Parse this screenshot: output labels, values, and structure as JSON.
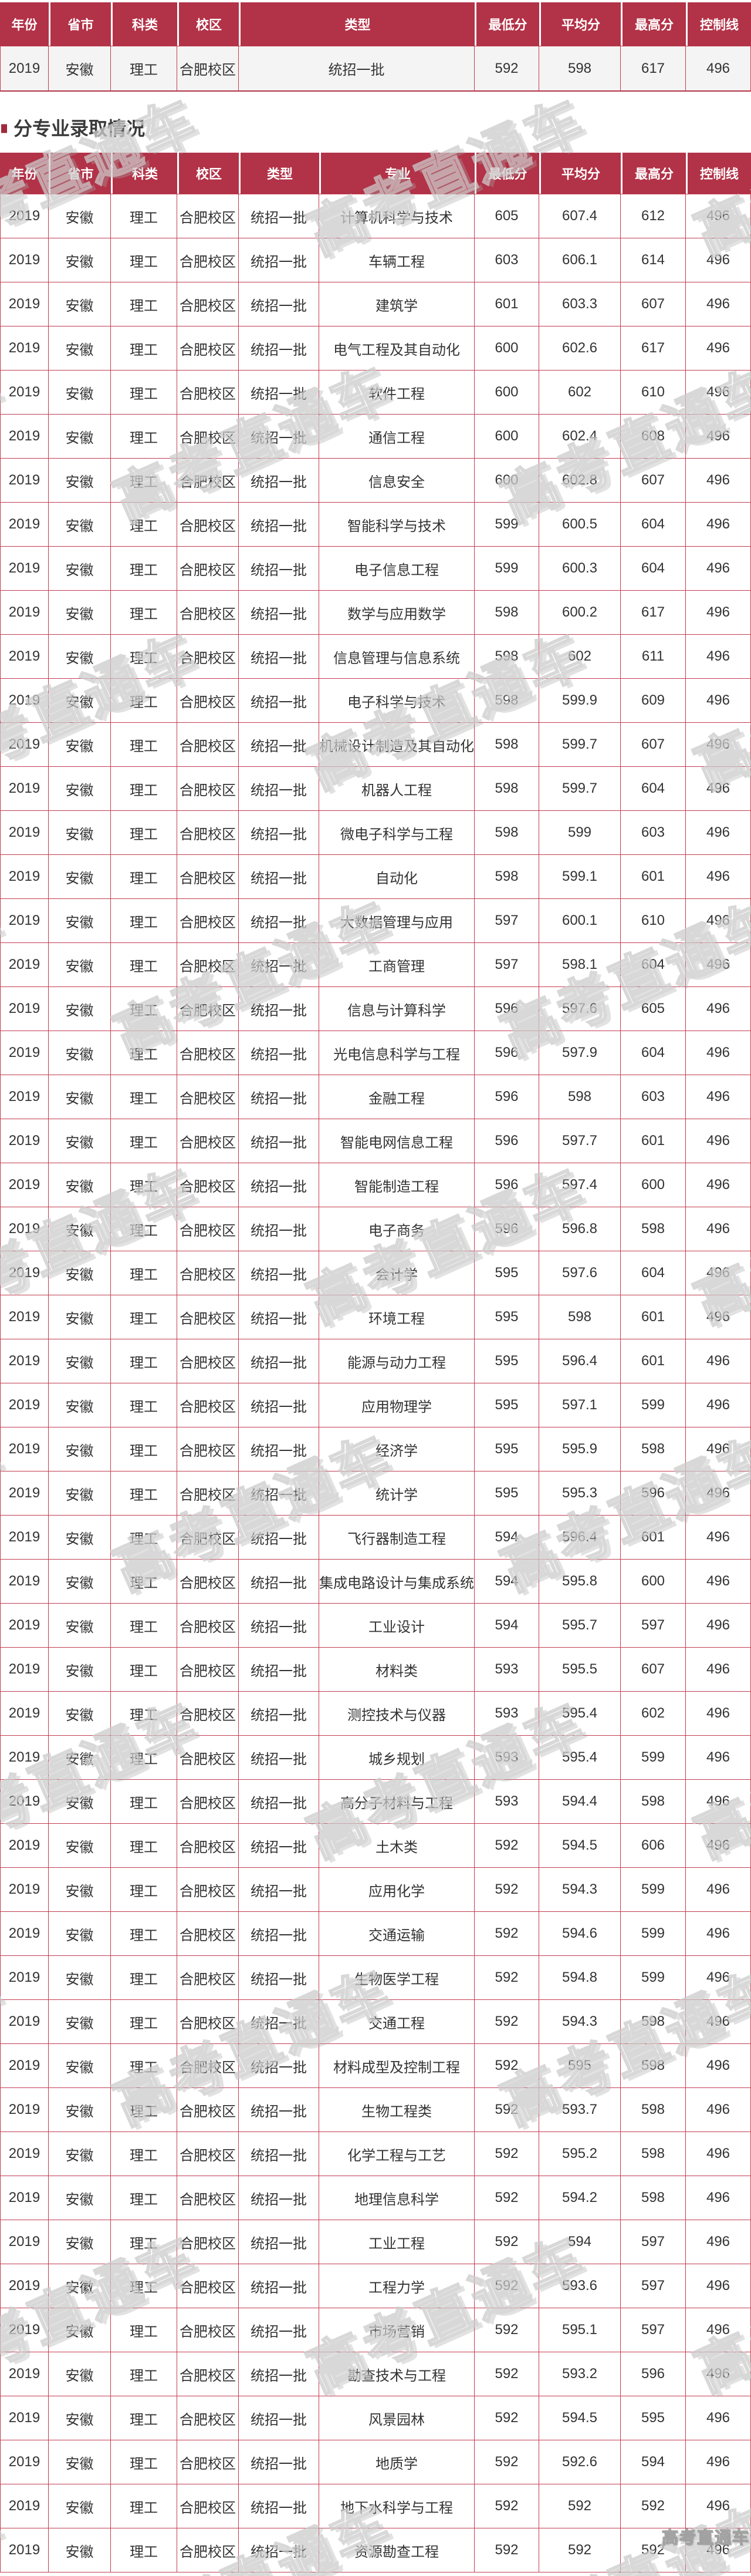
{
  "colors": {
    "header_bg": "#b23247",
    "grid_border": "#c23b50",
    "summary_row_bg": "#f4f4f4",
    "header_text": "#ffffff",
    "body_text": "#333333",
    "title_text": "#3a3a3a",
    "bullet": "#a02a3c",
    "watermark": "#cccccc"
  },
  "watermark": {
    "text": "高考直通车"
  },
  "section": {
    "title": "分专业录取情况"
  },
  "summary_table": {
    "headers": [
      "年份",
      "省市",
      "科类",
      "校区",
      "类型",
      "最低分",
      "平均分",
      "最高分",
      "控制线"
    ],
    "rows": [
      [
        "2019",
        "安徽",
        "理工",
        "合肥校区",
        "统招一批",
        "592",
        "598",
        "617",
        "496"
      ]
    ]
  },
  "majors_table": {
    "headers": [
      "年份",
      "省市",
      "科类",
      "校区",
      "类型",
      "专业",
      "最低分",
      "平均分",
      "最高分",
      "控制线"
    ],
    "rows": [
      [
        "2019",
        "安徽",
        "理工",
        "合肥校区",
        "统招一批",
        "计算机科学与技术",
        "605",
        "607.4",
        "612",
        "496"
      ],
      [
        "2019",
        "安徽",
        "理工",
        "合肥校区",
        "统招一批",
        "车辆工程",
        "603",
        "606.1",
        "614",
        "496"
      ],
      [
        "2019",
        "安徽",
        "理工",
        "合肥校区",
        "统招一批",
        "建筑学",
        "601",
        "603.3",
        "607",
        "496"
      ],
      [
        "2019",
        "安徽",
        "理工",
        "合肥校区",
        "统招一批",
        "电气工程及其自动化",
        "600",
        "602.6",
        "617",
        "496"
      ],
      [
        "2019",
        "安徽",
        "理工",
        "合肥校区",
        "统招一批",
        "软件工程",
        "600",
        "602",
        "610",
        "496"
      ],
      [
        "2019",
        "安徽",
        "理工",
        "合肥校区",
        "统招一批",
        "通信工程",
        "600",
        "602.4",
        "608",
        "496"
      ],
      [
        "2019",
        "安徽",
        "理工",
        "合肥校区",
        "统招一批",
        "信息安全",
        "600",
        "602.8",
        "607",
        "496"
      ],
      [
        "2019",
        "安徽",
        "理工",
        "合肥校区",
        "统招一批",
        "智能科学与技术",
        "599",
        "600.5",
        "604",
        "496"
      ],
      [
        "2019",
        "安徽",
        "理工",
        "合肥校区",
        "统招一批",
        "电子信息工程",
        "599",
        "600.3",
        "604",
        "496"
      ],
      [
        "2019",
        "安徽",
        "理工",
        "合肥校区",
        "统招一批",
        "数学与应用数学",
        "598",
        "600.2",
        "617",
        "496"
      ],
      [
        "2019",
        "安徽",
        "理工",
        "合肥校区",
        "统招一批",
        "信息管理与信息系统",
        "598",
        "602",
        "611",
        "496"
      ],
      [
        "2019",
        "安徽",
        "理工",
        "合肥校区",
        "统招一批",
        "电子科学与技术",
        "598",
        "599.9",
        "609",
        "496"
      ],
      [
        "2019",
        "安徽",
        "理工",
        "合肥校区",
        "统招一批",
        "机械设计制造及其自动化",
        "598",
        "599.7",
        "607",
        "496"
      ],
      [
        "2019",
        "安徽",
        "理工",
        "合肥校区",
        "统招一批",
        "机器人工程",
        "598",
        "599.7",
        "604",
        "496"
      ],
      [
        "2019",
        "安徽",
        "理工",
        "合肥校区",
        "统招一批",
        "微电子科学与工程",
        "598",
        "599",
        "603",
        "496"
      ],
      [
        "2019",
        "安徽",
        "理工",
        "合肥校区",
        "统招一批",
        "自动化",
        "598",
        "599.1",
        "601",
        "496"
      ],
      [
        "2019",
        "安徽",
        "理工",
        "合肥校区",
        "统招一批",
        "大数据管理与应用",
        "597",
        "600.1",
        "610",
        "496"
      ],
      [
        "2019",
        "安徽",
        "理工",
        "合肥校区",
        "统招一批",
        "工商管理",
        "597",
        "598.1",
        "604",
        "496"
      ],
      [
        "2019",
        "安徽",
        "理工",
        "合肥校区",
        "统招一批",
        "信息与计算科学",
        "596",
        "597.6",
        "605",
        "496"
      ],
      [
        "2019",
        "安徽",
        "理工",
        "合肥校区",
        "统招一批",
        "光电信息科学与工程",
        "596",
        "597.9",
        "604",
        "496"
      ],
      [
        "2019",
        "安徽",
        "理工",
        "合肥校区",
        "统招一批",
        "金融工程",
        "596",
        "598",
        "603",
        "496"
      ],
      [
        "2019",
        "安徽",
        "理工",
        "合肥校区",
        "统招一批",
        "智能电网信息工程",
        "596",
        "597.7",
        "601",
        "496"
      ],
      [
        "2019",
        "安徽",
        "理工",
        "合肥校区",
        "统招一批",
        "智能制造工程",
        "596",
        "597.4",
        "600",
        "496"
      ],
      [
        "2019",
        "安徽",
        "理工",
        "合肥校区",
        "统招一批",
        "电子商务",
        "596",
        "596.8",
        "598",
        "496"
      ],
      [
        "2019",
        "安徽",
        "理工",
        "合肥校区",
        "统招一批",
        "会计学",
        "595",
        "597.6",
        "604",
        "496"
      ],
      [
        "2019",
        "安徽",
        "理工",
        "合肥校区",
        "统招一批",
        "环境工程",
        "595",
        "598",
        "601",
        "496"
      ],
      [
        "2019",
        "安徽",
        "理工",
        "合肥校区",
        "统招一批",
        "能源与动力工程",
        "595",
        "596.4",
        "601",
        "496"
      ],
      [
        "2019",
        "安徽",
        "理工",
        "合肥校区",
        "统招一批",
        "应用物理学",
        "595",
        "597.1",
        "599",
        "496"
      ],
      [
        "2019",
        "安徽",
        "理工",
        "合肥校区",
        "统招一批",
        "经济学",
        "595",
        "595.9",
        "598",
        "496"
      ],
      [
        "2019",
        "安徽",
        "理工",
        "合肥校区",
        "统招一批",
        "统计学",
        "595",
        "595.3",
        "596",
        "496"
      ],
      [
        "2019",
        "安徽",
        "理工",
        "合肥校区",
        "统招一批",
        "飞行器制造工程",
        "594",
        "596.4",
        "601",
        "496"
      ],
      [
        "2019",
        "安徽",
        "理工",
        "合肥校区",
        "统招一批",
        "集成电路设计与集成系统",
        "594",
        "595.8",
        "600",
        "496"
      ],
      [
        "2019",
        "安徽",
        "理工",
        "合肥校区",
        "统招一批",
        "工业设计",
        "594",
        "595.7",
        "597",
        "496"
      ],
      [
        "2019",
        "安徽",
        "理工",
        "合肥校区",
        "统招一批",
        "材料类",
        "593",
        "595.5",
        "607",
        "496"
      ],
      [
        "2019",
        "安徽",
        "理工",
        "合肥校区",
        "统招一批",
        "测控技术与仪器",
        "593",
        "595.4",
        "602",
        "496"
      ],
      [
        "2019",
        "安徽",
        "理工",
        "合肥校区",
        "统招一批",
        "城乡规划",
        "593",
        "595.4",
        "599",
        "496"
      ],
      [
        "2019",
        "安徽",
        "理工",
        "合肥校区",
        "统招一批",
        "高分子材料与工程",
        "593",
        "594.4",
        "598",
        "496"
      ],
      [
        "2019",
        "安徽",
        "理工",
        "合肥校区",
        "统招一批",
        "土木类",
        "592",
        "594.5",
        "606",
        "496"
      ],
      [
        "2019",
        "安徽",
        "理工",
        "合肥校区",
        "统招一批",
        "应用化学",
        "592",
        "594.3",
        "599",
        "496"
      ],
      [
        "2019",
        "安徽",
        "理工",
        "合肥校区",
        "统招一批",
        "交通运输",
        "592",
        "594.6",
        "599",
        "496"
      ],
      [
        "2019",
        "安徽",
        "理工",
        "合肥校区",
        "统招一批",
        "生物医学工程",
        "592",
        "594.8",
        "599",
        "496"
      ],
      [
        "2019",
        "安徽",
        "理工",
        "合肥校区",
        "统招一批",
        "交通工程",
        "592",
        "594.3",
        "598",
        "496"
      ],
      [
        "2019",
        "安徽",
        "理工",
        "合肥校区",
        "统招一批",
        "材料成型及控制工程",
        "592",
        "595",
        "598",
        "496"
      ],
      [
        "2019",
        "安徽",
        "理工",
        "合肥校区",
        "统招一批",
        "生物工程类",
        "592",
        "593.7",
        "598",
        "496"
      ],
      [
        "2019",
        "安徽",
        "理工",
        "合肥校区",
        "统招一批",
        "化学工程与工艺",
        "592",
        "595.2",
        "598",
        "496"
      ],
      [
        "2019",
        "安徽",
        "理工",
        "合肥校区",
        "统招一批",
        "地理信息科学",
        "592",
        "594.2",
        "598",
        "496"
      ],
      [
        "2019",
        "安徽",
        "理工",
        "合肥校区",
        "统招一批",
        "工业工程",
        "592",
        "594",
        "597",
        "496"
      ],
      [
        "2019",
        "安徽",
        "理工",
        "合肥校区",
        "统招一批",
        "工程力学",
        "592",
        "593.6",
        "597",
        "496"
      ],
      [
        "2019",
        "安徽",
        "理工",
        "合肥校区",
        "统招一批",
        "市场营销",
        "592",
        "595.1",
        "597",
        "496"
      ],
      [
        "2019",
        "安徽",
        "理工",
        "合肥校区",
        "统招一批",
        "勘查技术与工程",
        "592",
        "593.2",
        "596",
        "496"
      ],
      [
        "2019",
        "安徽",
        "理工",
        "合肥校区",
        "统招一批",
        "风景园林",
        "592",
        "594.5",
        "595",
        "496"
      ],
      [
        "2019",
        "安徽",
        "理工",
        "合肥校区",
        "统招一批",
        "地质学",
        "592",
        "592.6",
        "594",
        "496"
      ],
      [
        "2019",
        "安徽",
        "理工",
        "合肥校区",
        "统招一批",
        "地下水科学与工程",
        "592",
        "592",
        "592",
        "496"
      ],
      [
        "2019",
        "安徽",
        "理工",
        "合肥校区",
        "统招一批",
        "资源勘查工程",
        "592",
        "592",
        "592",
        "496"
      ]
    ]
  }
}
